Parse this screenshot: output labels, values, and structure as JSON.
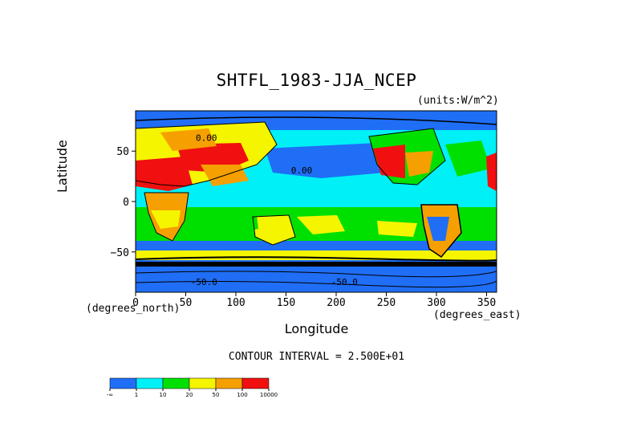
{
  "chart_data": {
    "type": "heatmap",
    "title": "SHTFL_1983-JJA_NCEP",
    "units_label": "(units:W/m^2)",
    "xlabel": "Longitude",
    "ylabel": "Latitude",
    "x_units": "(degrees_east)",
    "y_units": "(degrees_north)",
    "xlim": [
      0,
      360
    ],
    "ylim": [
      -90,
      90
    ],
    "x_ticks": [
      "0",
      "50",
      "100",
      "150",
      "200",
      "250",
      "300",
      "350"
    ],
    "y_ticks": [
      "50",
      "0",
      "−50"
    ],
    "contour_text": "CONTOUR INTERVAL = 2.500E+01",
    "contour_labels": [
      "0.00",
      "0.00",
      "-50.0",
      "-50.0"
    ],
    "colorbar": {
      "boundaries": [
        "-∞",
        "1",
        "10",
        "20",
        "50",
        "100",
        "10000"
      ],
      "colors": [
        "#1f6ef5",
        "#00f0f8",
        "#00e000",
        "#f5f500",
        "#f5a000",
        "#f01010"
      ]
    }
  }
}
